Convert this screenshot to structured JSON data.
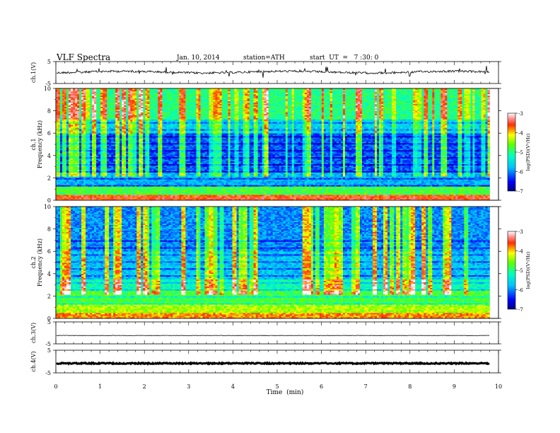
{
  "header": {
    "title": "VLF  Spectra",
    "date": "Jan. 10, 2014",
    "station": "station=ATH",
    "start": "start  UT  =   7 :30: 0"
  },
  "chart_data": [
    {
      "type": "line",
      "name": "ch1-waveform",
      "ylabel": "ch.1(V)",
      "yticks": [
        "5",
        "-5"
      ],
      "ylim": [
        -5,
        5
      ],
      "xlim": [
        0,
        10
      ],
      "trace_level": 0.2,
      "trace_end_min": 9.8
    },
    {
      "type": "heatmap",
      "name": "ch1-spectrogram",
      "ylabel": "ch.1\nFrequency  (kHz)",
      "yticks": [
        "0",
        "2",
        "4",
        "6",
        "8",
        "10"
      ],
      "ylim": [
        0,
        10
      ],
      "xlim": [
        0,
        10
      ],
      "data_end_min": 9.8,
      "colorbar": {
        "label": "log(PSD)(V²/Hz)",
        "ticks": [
          "-3",
          "-4",
          "-5",
          "-6",
          "-7"
        ],
        "range": [
          -7,
          -3
        ]
      }
    },
    {
      "type": "heatmap",
      "name": "ch2-spectrogram",
      "ylabel": "ch.2\nFrequency  (kHz)",
      "yticks": [
        "0",
        "2",
        "4",
        "6",
        "8",
        "10"
      ],
      "ylim": [
        0,
        10
      ],
      "xlim": [
        0,
        10
      ],
      "data_end_min": 9.8,
      "colorbar": {
        "label": "log(PSD)(V²/Hz)",
        "ticks": [
          "-3",
          "-4",
          "-5",
          "-6",
          "-7"
        ],
        "range": [
          -7,
          -3
        ]
      }
    },
    {
      "type": "line",
      "name": "ch3-waveform",
      "ylabel": "ch.3(V)",
      "yticks": [
        "5",
        "-5"
      ],
      "ylim": [
        -5,
        5
      ],
      "xlim": [
        0,
        10
      ],
      "trace_level": -1.2,
      "trace_end_min": 9.8
    },
    {
      "type": "line",
      "name": "ch4-waveform",
      "ylabel": "ch.4(V)",
      "yticks": [
        "5",
        "-5"
      ],
      "ylim": [
        -5,
        5
      ],
      "xlim": [
        0,
        10
      ],
      "trace_level": -0.8,
      "trace_end_min": 9.8
    }
  ],
  "xaxis": {
    "label": "Time  (min)",
    "ticks": [
      "0",
      "1",
      "2",
      "3",
      "4",
      "5",
      "6",
      "7",
      "8",
      "9",
      "10"
    ]
  }
}
